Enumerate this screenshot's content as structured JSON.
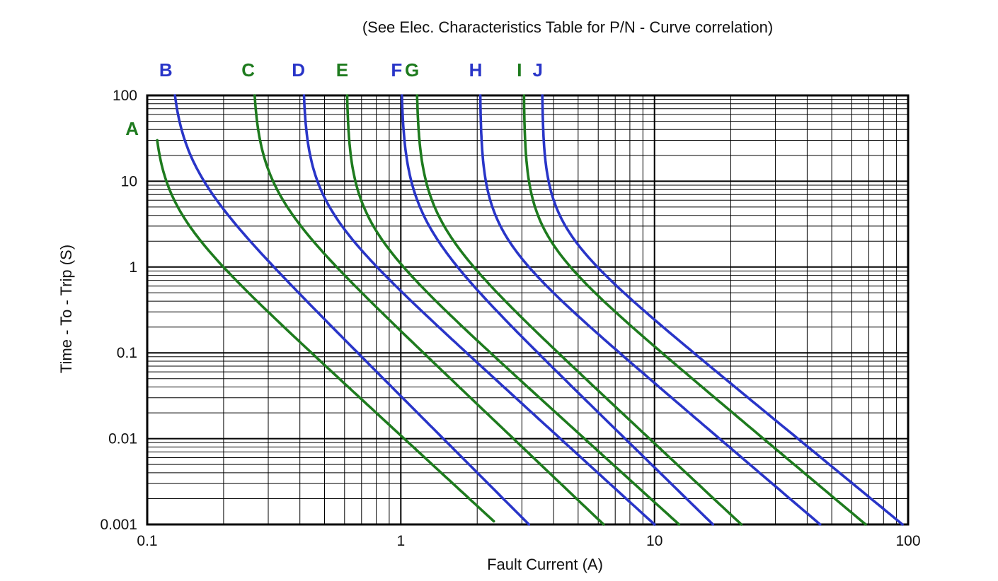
{
  "chart_data": {
    "type": "line",
    "title": "(See Elec. Characteristics Table for P/N - Curve correlation)",
    "xlabel": "Fault Current (A)",
    "ylabel": "Time - To - Trip (S)",
    "x_scale": "log",
    "y_scale": "log",
    "xlim": [
      0.1,
      100
    ],
    "ylim": [
      0.001,
      100
    ],
    "grid": "log-log major and minor gridlines, black on white, full border frame",
    "legend": "curve letters printed above/beside each curve, color-coded",
    "x_ticks": [
      {
        "value": 0.1,
        "label": "0.1"
      },
      {
        "value": 1,
        "label": "1"
      },
      {
        "value": 10,
        "label": "10"
      },
      {
        "value": 100,
        "label": "100"
      }
    ],
    "y_ticks": [
      {
        "value": 100,
        "label": "100"
      },
      {
        "value": 10,
        "label": "10"
      },
      {
        "value": 1,
        "label": "1"
      },
      {
        "value": 0.1,
        "label": "0.1"
      },
      {
        "value": 0.01,
        "label": "0.01"
      },
      {
        "value": 0.001,
        "label": "0.001"
      }
    ],
    "colors": {
      "green": "#1e7b1e",
      "blue": "#2935c8"
    },
    "series": [
      {
        "label": "A",
        "color": "#1e7b1e",
        "label_placement": "left-of-curve",
        "t_start_s": 30,
        "I_asymptote_A": 0.105,
        "I_at_1s_A": 0.19,
        "I_at_1ms_A": 2.4
      },
      {
        "label": "B",
        "color": "#2935c8",
        "label_placement": "above-curve",
        "t_start_s": 100,
        "I_asymptote_A": 0.123,
        "I_at_1s_A": 0.31,
        "I_at_1ms_A": 3.2
      },
      {
        "label": "C",
        "color": "#1e7b1e",
        "label_placement": "above-curve",
        "t_start_s": 100,
        "I_asymptote_A": 0.26,
        "I_at_1s_A": 0.54,
        "I_at_1ms_A": 6.3
      },
      {
        "label": "D",
        "color": "#2935c8",
        "label_placement": "above-curve",
        "t_start_s": 100,
        "I_asymptote_A": 0.41,
        "I_at_1s_A": 0.77,
        "I_at_1ms_A": 10
      },
      {
        "label": "E",
        "color": "#1e7b1e",
        "label_placement": "above-curve",
        "t_start_s": 100,
        "I_asymptote_A": 0.61,
        "I_at_1s_A": 0.95,
        "I_at_1ms_A": 12.5
      },
      {
        "label": "F",
        "color": "#2935c8",
        "label_placement": "above-curve",
        "t_start_s": 100,
        "I_asymptote_A": 1.0,
        "I_at_1s_A": 1.55,
        "I_at_1ms_A": 17
      },
      {
        "label": "G",
        "color": "#1e7b1e",
        "label_placement": "above-curve",
        "t_start_s": 100,
        "I_asymptote_A": 1.15,
        "I_at_1s_A": 1.8,
        "I_at_1ms_A": 22
      },
      {
        "label": "H",
        "color": "#2935c8",
        "label_placement": "above-curve",
        "t_start_s": 100,
        "I_asymptote_A": 2.05,
        "I_at_1s_A": 2.9,
        "I_at_1ms_A": 45
      },
      {
        "label": "I",
        "color": "#1e7b1e",
        "label_placement": "above-curve",
        "t_start_s": 100,
        "I_asymptote_A": 3.05,
        "I_at_1s_A": 4.2,
        "I_at_1ms_A": 68
      },
      {
        "label": "J",
        "color": "#2935c8",
        "label_placement": "above-curve",
        "t_start_s": 100,
        "I_asymptote_A": 3.6,
        "I_at_1s_A": 5.5,
        "I_at_1ms_A": 95
      }
    ]
  }
}
